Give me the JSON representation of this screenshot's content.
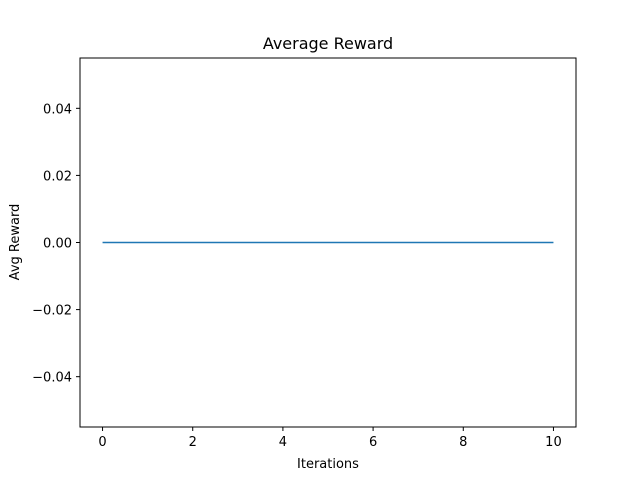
{
  "chart_data": {
    "type": "line",
    "title": "Average Reward",
    "xlabel": "Iterations",
    "ylabel": "Avg Reward",
    "xlim": [
      -0.5,
      10.5
    ],
    "ylim": [
      -0.055,
      0.055
    ],
    "xticks": [
      0,
      2,
      4,
      6,
      8,
      10
    ],
    "xtick_labels": [
      "0",
      "2",
      "4",
      "6",
      "8",
      "10"
    ],
    "yticks": [
      -0.04,
      -0.02,
      0.0,
      0.02,
      0.04
    ],
    "ytick_labels": [
      "−0.04",
      "−0.02",
      "0.00",
      "0.02",
      "0.04"
    ],
    "grid": false,
    "legend": false,
    "series": [
      {
        "color": "#1f77b4",
        "x": [
          0,
          1,
          2,
          3,
          4,
          5,
          6,
          7,
          8,
          9,
          10
        ],
        "y": [
          0,
          0,
          0,
          0,
          0,
          0,
          0,
          0,
          0,
          0,
          0
        ]
      }
    ]
  }
}
